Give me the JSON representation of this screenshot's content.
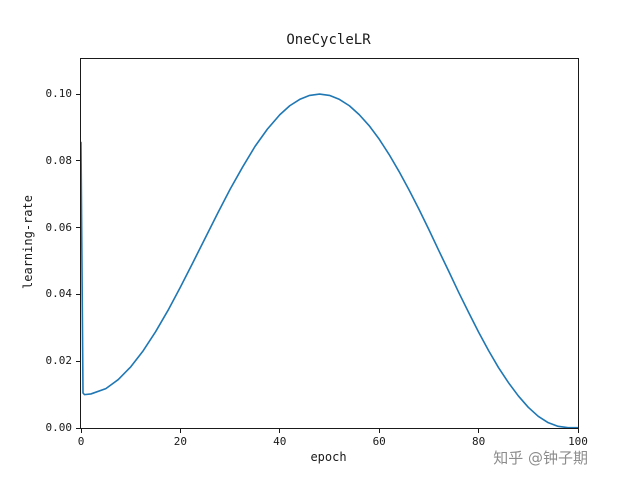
{
  "figure": {
    "background": "#ffffff"
  },
  "chart_data": {
    "type": "line",
    "title": "OneCycleLR",
    "xlabel": "epoch",
    "ylabel": "learning-rate",
    "xlim": [
      0,
      100
    ],
    "ylim": [
      0,
      0.1105
    ],
    "grid": false,
    "legend": "none",
    "line_color": "#1f77b4",
    "xticks": [
      "0",
      "20",
      "40",
      "60",
      "80",
      "100"
    ],
    "xtick_values": [
      0,
      20,
      40,
      60,
      80,
      100
    ],
    "yticks": [
      "0.00",
      "0.02",
      "0.04",
      "0.06",
      "0.08",
      "0.10"
    ],
    "ytick_values": [
      0,
      0.02,
      0.04,
      0.06,
      0.08,
      0.1
    ],
    "series": [
      {
        "name": "learning-rate",
        "points": [
          [
            0,
            0.0855
          ],
          [
            0.4,
            0.0105
          ],
          [
            0.7,
            0.01
          ],
          [
            2,
            0.0102
          ],
          [
            5,
            0.0118
          ],
          [
            7.5,
            0.0145
          ],
          [
            10,
            0.0183
          ],
          [
            12.5,
            0.0231
          ],
          [
            15,
            0.0288
          ],
          [
            17.5,
            0.0352
          ],
          [
            20,
            0.0422
          ],
          [
            22.5,
            0.0495
          ],
          [
            25,
            0.0569
          ],
          [
            27.5,
            0.0643
          ],
          [
            30,
            0.0715
          ],
          [
            32.5,
            0.0781
          ],
          [
            35,
            0.0843
          ],
          [
            37.5,
            0.0895
          ],
          [
            40,
            0.0938
          ],
          [
            42,
            0.0965
          ],
          [
            44,
            0.0984
          ],
          [
            46,
            0.0996
          ],
          [
            48,
            0.1
          ],
          [
            50,
            0.0996
          ],
          [
            52,
            0.0984
          ],
          [
            54,
            0.0965
          ],
          [
            56,
            0.0938
          ],
          [
            58,
            0.0905
          ],
          [
            60,
            0.0865
          ],
          [
            62,
            0.0819
          ],
          [
            64,
            0.0768
          ],
          [
            66,
            0.0713
          ],
          [
            68,
            0.0655
          ],
          [
            70,
            0.0594
          ],
          [
            72,
            0.0531
          ],
          [
            74,
            0.0469
          ],
          [
            76,
            0.0406
          ],
          [
            78,
            0.0346
          ],
          [
            80,
            0.0287
          ],
          [
            82,
            0.0232
          ],
          [
            84,
            0.0181
          ],
          [
            86,
            0.0136
          ],
          [
            88,
            0.0096
          ],
          [
            90,
            0.0062
          ],
          [
            92,
            0.0035
          ],
          [
            94,
            0.0016
          ],
          [
            96,
            0.0005
          ],
          [
            98,
            0.0001
          ],
          [
            100,
            0.0001
          ]
        ]
      }
    ]
  },
  "watermark": {
    "text": "知乎 @钟子期",
    "color": "#8d8d8d"
  }
}
